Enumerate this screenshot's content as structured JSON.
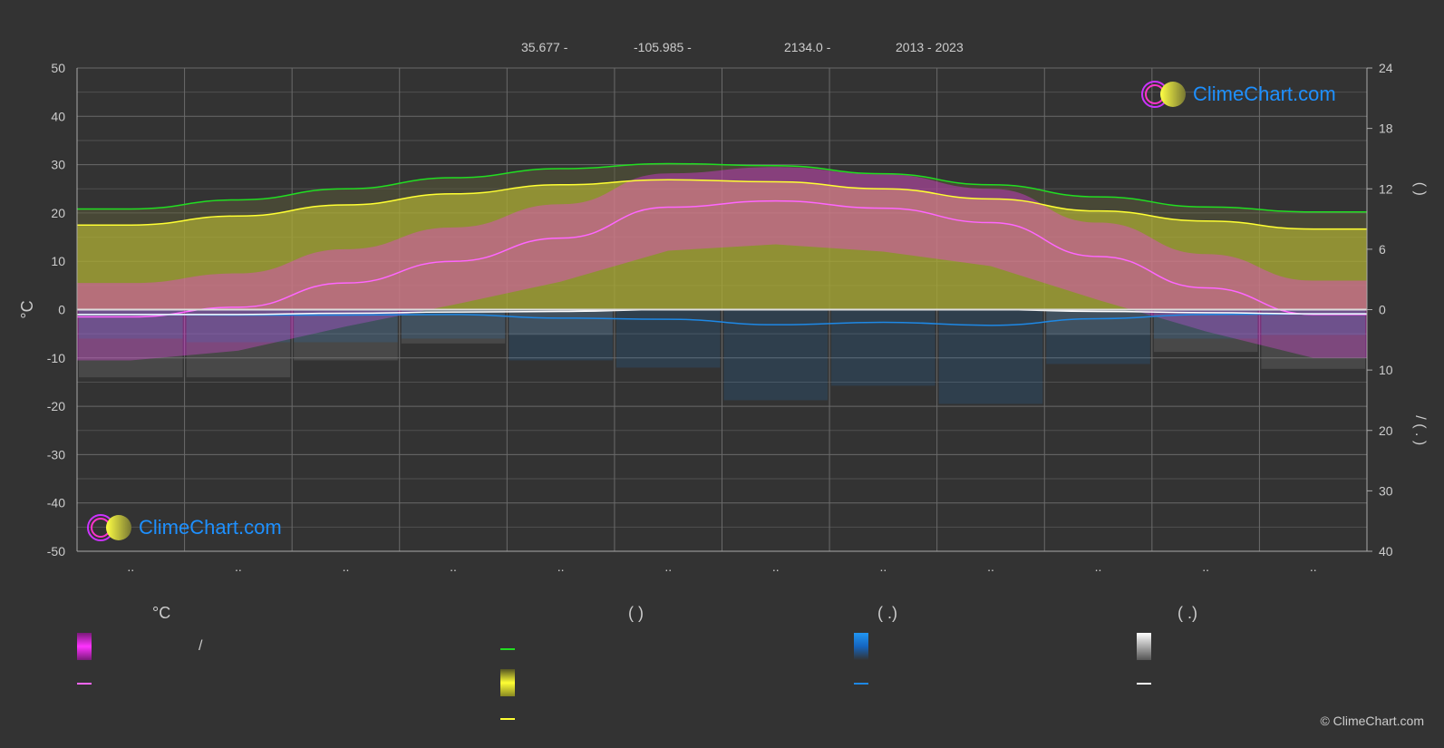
{
  "header": {
    "lat": "35.677 -",
    "lon": "-105.985 -",
    "elev": "2134.0 -",
    "years": "2013 - 2023"
  },
  "logo_text": "ClimeChart.com",
  "copyright": "© ClimeChart.com",
  "legend": {
    "col1_head": "°C",
    "col2_head": "(          )",
    "col3_head": "(   .)",
    "col4_head": "(   .)",
    "slash_label": "/"
  },
  "colors": {
    "background": "#333333",
    "daylight": "#22dd22",
    "sunshine": "#ffff33",
    "avg_temp": "#ff66ff",
    "rain": "#1e88e5",
    "snow": "#ffffff",
    "temp_fill": "#ff33ff",
    "sunshine_fill": "#cccc33",
    "brand": "#1e90ff"
  },
  "chart_data": {
    "type": "line",
    "x": [
      1,
      2,
      3,
      4,
      5,
      6,
      7,
      8,
      9,
      10,
      11,
      12
    ],
    "month_labels": [
      "..",
      "..",
      "..",
      "..",
      "..",
      "..",
      "..",
      "..",
      "..",
      "..",
      "..",
      ".."
    ],
    "left_axis": {
      "label": "°C",
      "ylim": [
        -50,
        50
      ],
      "ticks": [
        50,
        40,
        30,
        20,
        10,
        0,
        -10,
        -20,
        -30,
        -40,
        -50
      ]
    },
    "right_axis_top": {
      "ylim": [
        0,
        24
      ],
      "ticks": [
        24,
        18,
        12,
        6,
        0
      ],
      "label": "(    )"
    },
    "right_axis_bottom": {
      "ylim": [
        0,
        40
      ],
      "ticks": [
        0,
        10,
        20,
        30,
        40
      ],
      "label": "/  (  .  )"
    },
    "series": [
      {
        "key": "daylight",
        "axis": "right_top",
        "values": [
          10.0,
          10.9,
          12.0,
          13.1,
          14.0,
          14.5,
          14.3,
          13.5,
          12.4,
          11.2,
          10.2,
          9.7
        ]
      },
      {
        "key": "sunshine",
        "axis": "right_top",
        "values": [
          8.4,
          9.3,
          10.4,
          11.5,
          12.4,
          12.9,
          12.7,
          12.0,
          11.0,
          9.8,
          8.8,
          8.0
        ]
      },
      {
        "key": "avg_temp",
        "axis": "left",
        "values": [
          -1.5,
          0.5,
          5.5,
          10.0,
          14.8,
          21.2,
          22.5,
          21.0,
          18.0,
          11.0,
          4.5,
          -1.0
        ]
      },
      {
        "key": "rain",
        "axis": "right_bottom",
        "values": [
          0.8,
          0.9,
          0.9,
          0.8,
          1.4,
          1.6,
          2.5,
          2.1,
          2.6,
          1.5,
          0.8,
          0.7
        ]
      },
      {
        "key": "snow",
        "axis": "right_bottom",
        "values": [
          0.8,
          0.8,
          0.6,
          0.4,
          0.3,
          0.0,
          0.0,
          0.0,
          0.0,
          0.3,
          0.5,
          0.7
        ]
      }
    ]
  }
}
